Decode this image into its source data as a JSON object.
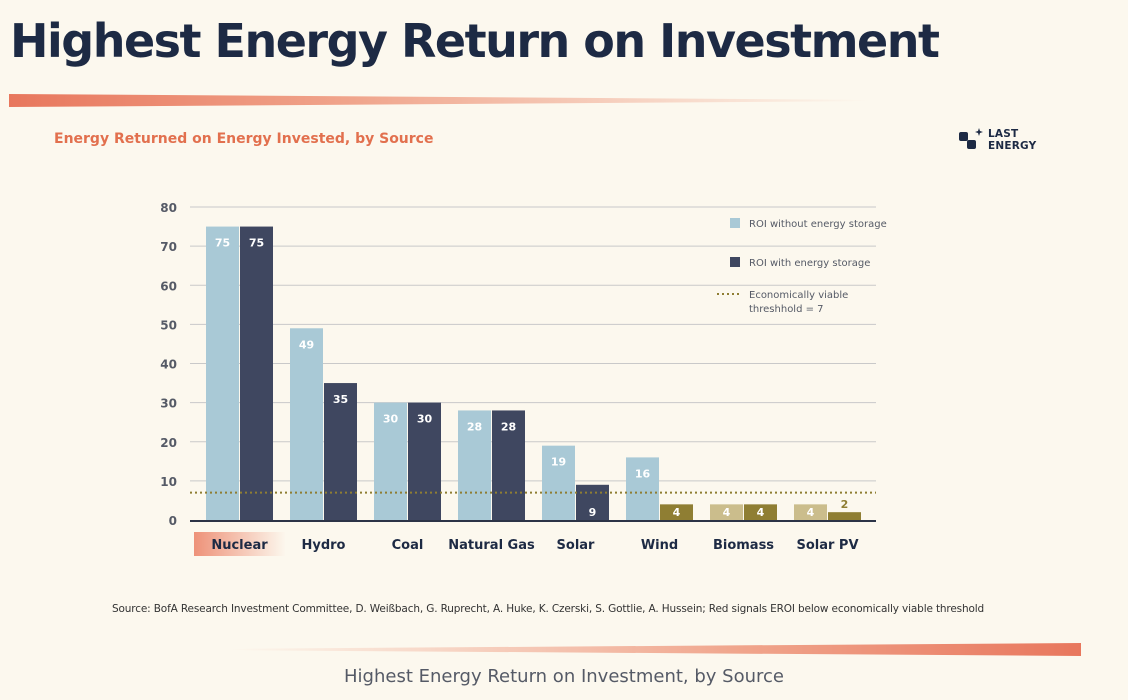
{
  "page": {
    "title": "Highest Energy Return on Investment",
    "subtitle": "Energy Returned on Energy Invested, by Source",
    "logo": {
      "line1": "LAST",
      "line2": "ENERGY",
      "icon": "last-energy-logo-icon"
    },
    "source": "Source: BofA Research Investment Committee, D. Weißbach, G. Ruprecht, A. Huke, K. Czerski, S. Gottlie, A. Hussein; Red signals EROI below economically viable threshold",
    "caption": "Highest Energy Return on Investment, by Source"
  },
  "colors": {
    "without_storage": "#a9c9d6",
    "with_storage": "#3f4760",
    "below_threshold_without": "#cbbd8c",
    "below_threshold_with": "#8f7e33",
    "threshold": "#8f7e33",
    "accent": "#e2704e",
    "grid": "#c9c9c9",
    "axis_text": "#555a66"
  },
  "chart_data": {
    "type": "bar",
    "title": "Energy Returned on Energy Invested, by Source",
    "xlabel": "",
    "ylabel": "",
    "ylim": [
      0,
      80
    ],
    "yticks": [
      0,
      10,
      20,
      30,
      40,
      50,
      60,
      70,
      80
    ],
    "categories": [
      "Nuclear",
      "Hydro",
      "Coal",
      "Natural Gas",
      "Solar",
      "Wind",
      "Biomass",
      "Solar PV"
    ],
    "highlighted_category": "Nuclear",
    "series": [
      {
        "name": "ROI without energy storage",
        "values": [
          75,
          49,
          30,
          28,
          19,
          16,
          4,
          4
        ]
      },
      {
        "name": "ROI with energy storage",
        "values": [
          75,
          35,
          30,
          28,
          9,
          4,
          4,
          2
        ]
      }
    ],
    "threshold": {
      "value": 7,
      "label_line1": "Economically viable",
      "label_line2": "threshhold = 7"
    },
    "grid": true,
    "legend_position": "top-right"
  }
}
